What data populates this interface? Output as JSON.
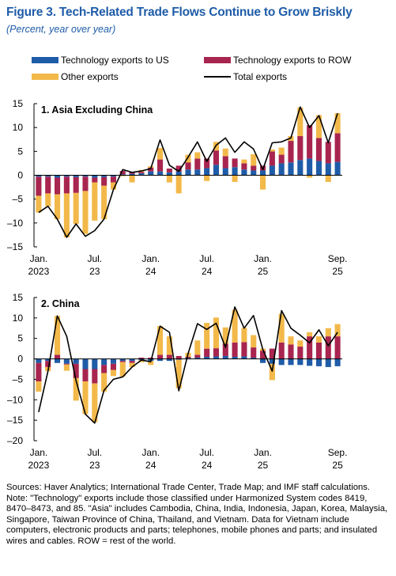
{
  "figure": {
    "title": "Figure 3.  Tech-Related Trade Flows Continue to Grow Briskly",
    "subtitle": "(Percent, year over year)"
  },
  "legend": [
    {
      "key": "us",
      "label": "Technology exports to US",
      "color": "#1f5ca8",
      "kind": "bar"
    },
    {
      "key": "row",
      "label": "Technology exports to ROW",
      "color": "#a8254f",
      "kind": "bar"
    },
    {
      "key": "other",
      "label": "Other exports",
      "color": "#f2b94a",
      "kind": "bar"
    },
    {
      "key": "total",
      "label": "Total exports",
      "color": "#000000",
      "kind": "line"
    }
  ],
  "notes": {
    "sources": "Sources: Haver Analytics; International Trade Center, Trade Map; and IMF staff calculations.",
    "note": "Note: \"Technology\" exports include those classified under Harmonized System codes 8419, 8470–8473, and 85. \"Asia\" includes Cambodia, China, India, Indonesia, Japan, Korea, Malaysia, Singapore, Taiwan Province of China, Thailand, and Vietnam. Data for Vietnam include computers, electronic products and parts; telephones, mobile phones and parts; and insulated wires and cables. ROW = rest of the world."
  },
  "chart_data": [
    {
      "type": "bar",
      "stacked": true,
      "title": "1. Asia Excluding China",
      "ylim": [
        -15,
        15
      ],
      "yticks": [
        15,
        10,
        5,
        0,
        -5,
        -10,
        -15
      ],
      "xtick_labels": [
        {
          "index": 0,
          "line1": "Jan.",
          "line2": "2023"
        },
        {
          "index": 6,
          "line1": "Jul.",
          "line2": "23"
        },
        {
          "index": 12,
          "line1": "Jan.",
          "line2": "24"
        },
        {
          "index": 18,
          "line1": "Jul.",
          "line2": "24"
        },
        {
          "index": 24,
          "line1": "Jan.",
          "line2": "25"
        },
        {
          "index": 32,
          "line1": "Sep.",
          "line2": "25"
        }
      ],
      "x": [
        "2023-01",
        "2023-02",
        "2023-03",
        "2023-04",
        "2023-05",
        "2023-06",
        "2023-07",
        "2023-08",
        "2023-09",
        "2023-10",
        "2023-11",
        "2023-12",
        "2024-01",
        "2024-02",
        "2024-03",
        "2024-04",
        "2024-05",
        "2024-06",
        "2024-07",
        "2024-08",
        "2024-09",
        "2024-10",
        "2024-11",
        "2024-12",
        "2025-01",
        "2025-02",
        "2025-03",
        "2025-04",
        "2025-05",
        "2025-06",
        "2025-07",
        "2025-08",
        "2025-09"
      ],
      "series": [
        {
          "name": "Technology exports to US",
          "values": [
            -0.3,
            -0.3,
            -0.5,
            -0.3,
            -0.4,
            -0.3,
            -0.5,
            -0.4,
            -0.3,
            0.2,
            0.3,
            0.4,
            0.8,
            0.8,
            0.6,
            0.8,
            1.2,
            1.2,
            1.5,
            2.2,
            1.5,
            1.7,
            1.2,
            1.0,
            1.0,
            2.0,
            2.5,
            2.7,
            3.2,
            3.5,
            3.0,
            2.5,
            2.8
          ]
        },
        {
          "name": "Technology exports to ROW",
          "values": [
            -4.0,
            -3.5,
            -3.5,
            -3.5,
            -3.3,
            -3.0,
            -1.0,
            -1.8,
            -1.2,
            0.7,
            0.4,
            0.3,
            0.8,
            2.5,
            0.8,
            1.2,
            1.5,
            2.3,
            2.0,
            3.0,
            2.5,
            1.8,
            1.3,
            1.0,
            1.0,
            3.0,
            1.8,
            4.5,
            5.0,
            7.0,
            4.8,
            4.5,
            6.0
          ]
        },
        {
          "name": "Other exports",
          "values": [
            -3.5,
            -2.7,
            -5.2,
            -9.2,
            -6.5,
            -9.0,
            -8.0,
            -7.0,
            -1.5,
            -0.2,
            -1.5,
            0.4,
            0.3,
            2.4,
            -1.5,
            -3.8,
            1.6,
            1.3,
            -1.2,
            1.8,
            1.6,
            -1.4,
            0.8,
            2.4,
            -3.0,
            0.4,
            1.5,
            1.0,
            6.0,
            -0.5,
            4.8,
            -1.4,
            4.2
          ]
        },
        {
          "name": "Total exports",
          "kind": "line",
          "values": [
            -7.8,
            -6.5,
            -9.2,
            -13.0,
            -10.2,
            -12.8,
            -11.6,
            -9.2,
            -3.0,
            1.2,
            0.6,
            0.9,
            1.4,
            7.4,
            2.1,
            0.8,
            3.8,
            7.0,
            2.9,
            6.3,
            7.8,
            4.8,
            7.0,
            5.5,
            1.2,
            6.8,
            7.0,
            7.8,
            14.3,
            10.0,
            12.5,
            6.8,
            13.0
          ]
        }
      ]
    },
    {
      "type": "bar",
      "stacked": true,
      "title": "2. China",
      "ylim": [
        -20,
        15
      ],
      "yticks": [
        15,
        10,
        5,
        0,
        -5,
        -10,
        -15,
        -20
      ],
      "xtick_labels": [
        {
          "index": 0,
          "line1": "Jan.",
          "line2": "2023"
        },
        {
          "index": 6,
          "line1": "Jul.",
          "line2": "23"
        },
        {
          "index": 12,
          "line1": "Jan.",
          "line2": "24"
        },
        {
          "index": 18,
          "line1": "Jul.",
          "line2": "24"
        },
        {
          "index": 24,
          "line1": "Jan.",
          "line2": "25"
        },
        {
          "index": 32,
          "line1": "Sep.",
          "line2": "25"
        }
      ],
      "x": [
        "2023-01",
        "2023-02",
        "2023-03",
        "2023-04",
        "2023-05",
        "2023-06",
        "2023-07",
        "2023-08",
        "2023-09",
        "2023-10",
        "2023-11",
        "2023-12",
        "2024-01",
        "2024-02",
        "2024-03",
        "2024-04",
        "2024-05",
        "2024-06",
        "2024-07",
        "2024-08",
        "2024-09",
        "2024-10",
        "2024-11",
        "2024-12",
        "2025-01",
        "2025-02",
        "2025-03",
        "2025-04",
        "2025-05",
        "2025-06",
        "2025-07",
        "2025-08",
        "2025-09"
      ],
      "series": [
        {
          "name": "Technology exports to US",
          "values": [
            -1.0,
            -0.5,
            -1.0,
            -1.2,
            -1.2,
            -2.5,
            -2.5,
            -1.5,
            -1.2,
            -0.5,
            -0.5,
            -0.3,
            -0.5,
            -0.5,
            -0.5,
            -0.2,
            0.2,
            0.3,
            0.5,
            0.6,
            0.7,
            0.5,
            0.6,
            0.3,
            -1.0,
            -1.2,
            -1.5,
            -1.5,
            -1.5,
            -1.7,
            -1.8,
            -2.0,
            -1.8
          ]
        },
        {
          "name": "Technology exports to ROW",
          "values": [
            -4.5,
            -1.5,
            1.0,
            -0.2,
            -3.5,
            -3.0,
            -3.5,
            -2.0,
            -1.5,
            -0.3,
            -0.5,
            0.3,
            0.3,
            1.0,
            1.0,
            0.7,
            0.3,
            0.7,
            2.0,
            2.0,
            3.0,
            3.5,
            3.5,
            2.5,
            2.0,
            2.5,
            4.0,
            3.5,
            3.0,
            5.5,
            4.0,
            5.5,
            5.5
          ]
        },
        {
          "name": "Other exports",
          "values": [
            -2.5,
            -1.0,
            9.5,
            -1.5,
            -5.5,
            -8.0,
            -9.5,
            -4.5,
            -1.5,
            -3.5,
            -1.0,
            -0.5,
            -1.0,
            7.0,
            4.5,
            -7.0,
            1.0,
            3.5,
            6.3,
            7.5,
            4.0,
            8.0,
            3.5,
            3.0,
            0.5,
            -4.0,
            7.0,
            2.0,
            1.5,
            1.0,
            1.5,
            2.0,
            3.0
          ]
        },
        {
          "name": "Total exports",
          "kind": "line",
          "values": [
            -13.0,
            -3.0,
            10.5,
            5.5,
            -5.3,
            -13.5,
            -15.7,
            -7.7,
            -5.0,
            -4.4,
            -2.0,
            -0.3,
            -0.7,
            8.0,
            6.5,
            -7.8,
            1.3,
            8.6,
            7.2,
            8.7,
            2.8,
            12.7,
            7.5,
            10.6,
            2.3,
            -3.0,
            11.8,
            7.5,
            5.8,
            3.9,
            7.1,
            3.2,
            6.5
          ]
        }
      ]
    }
  ]
}
